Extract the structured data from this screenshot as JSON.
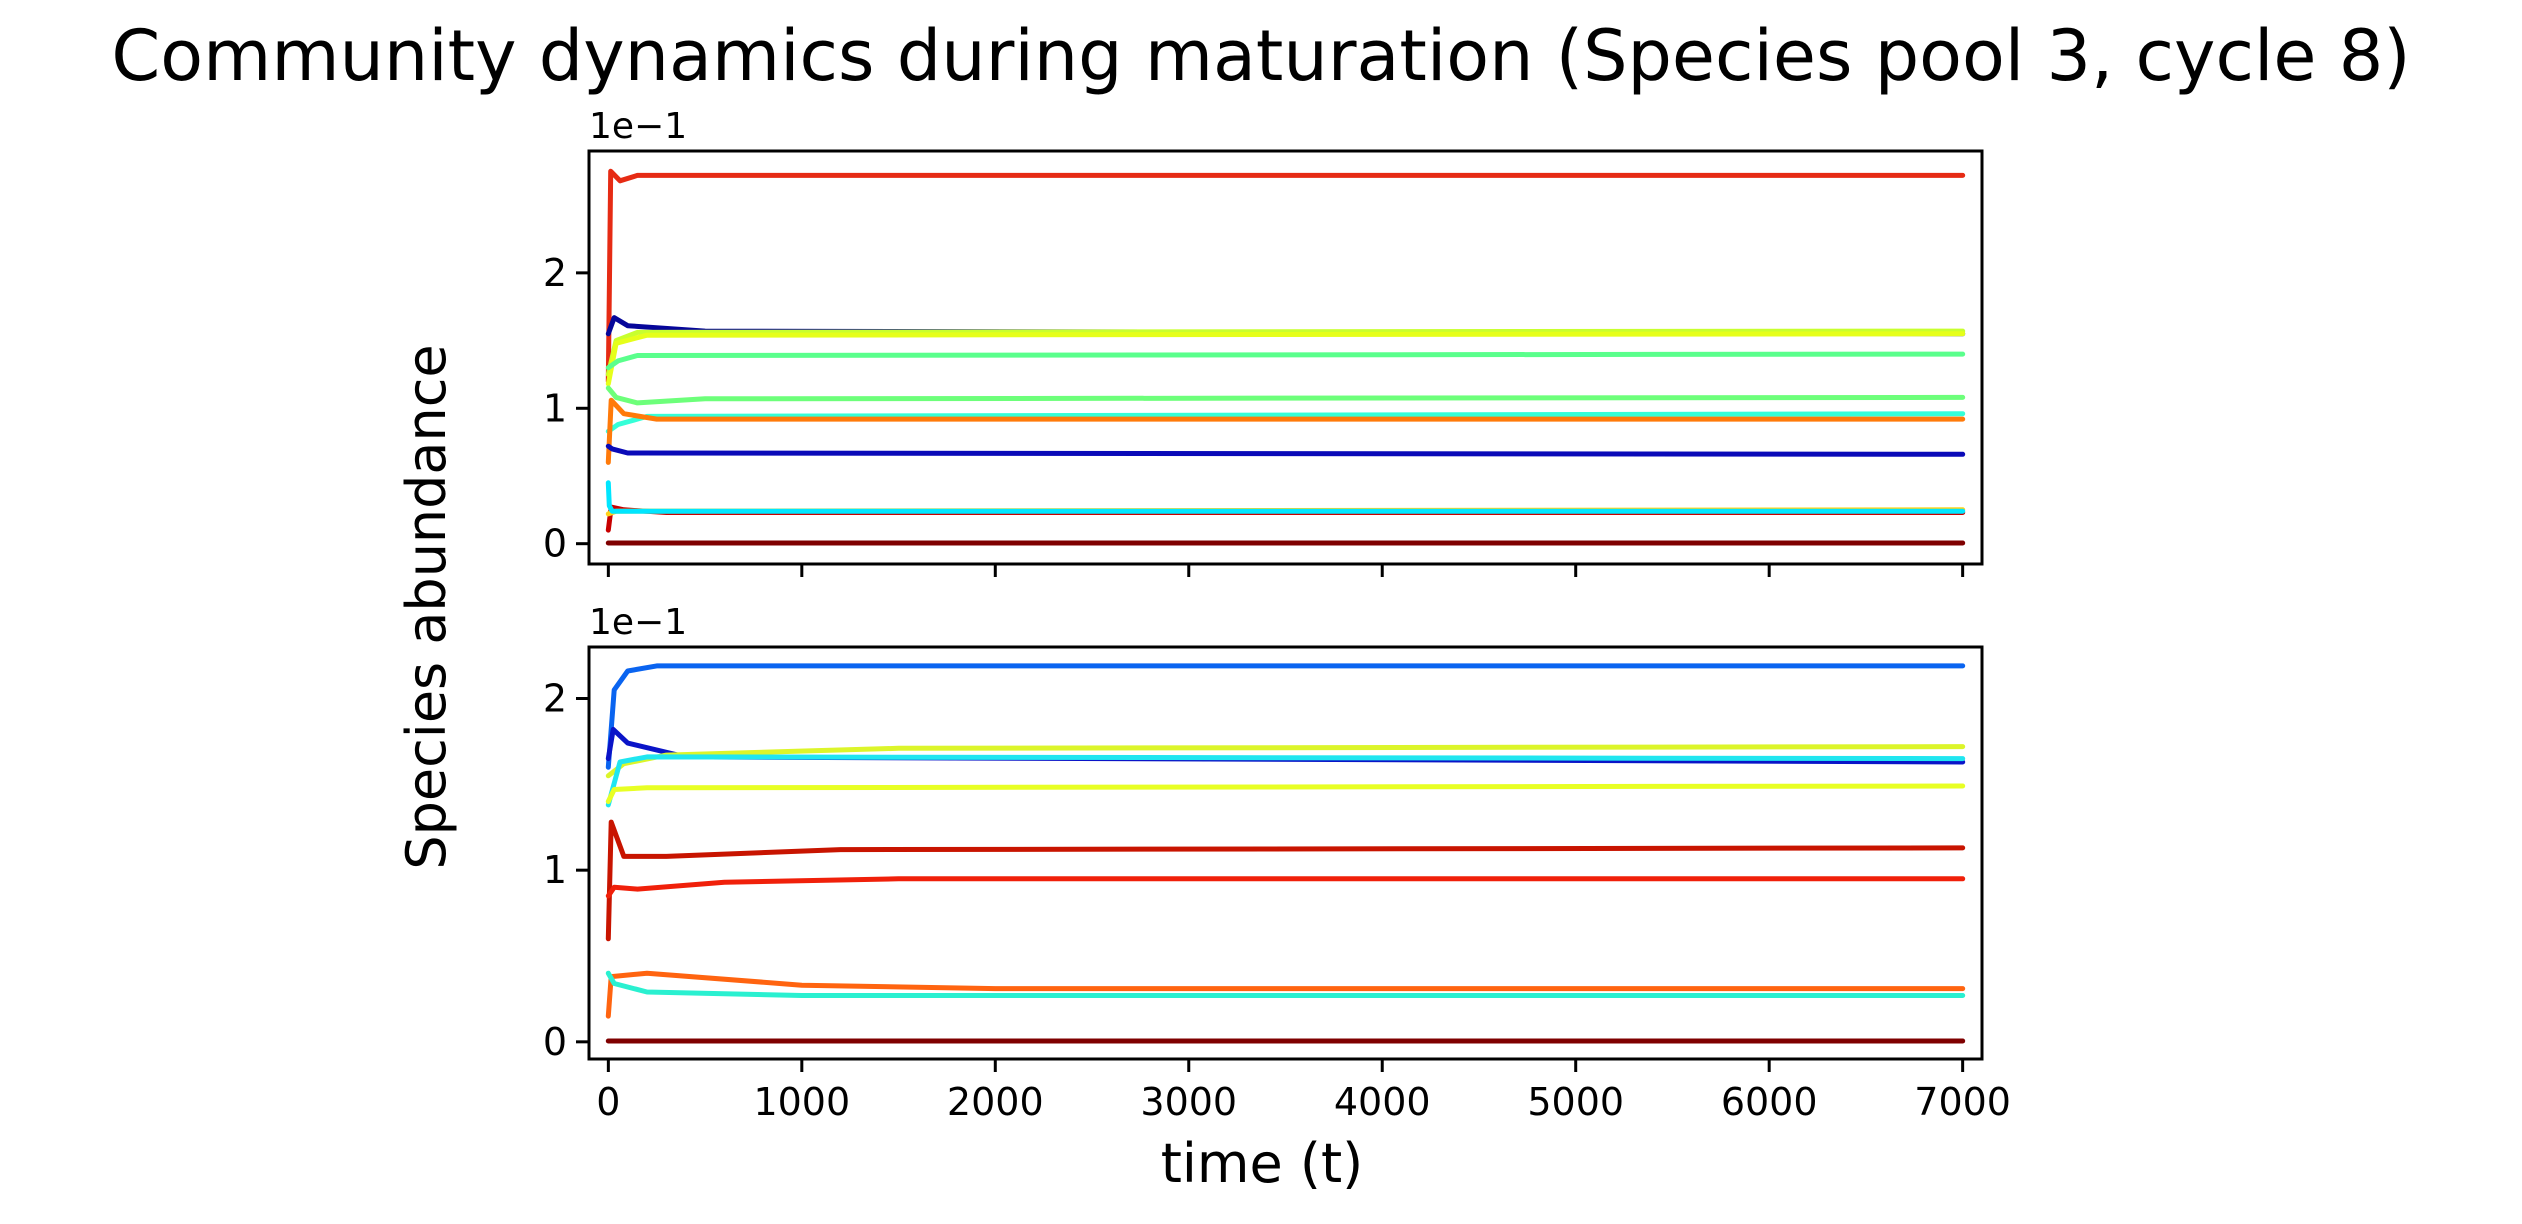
{
  "figure": {
    "title": "Community dynamics during maturation (Species pool 3, cycle 8)",
    "ylabel": "Species abundance",
    "xlabel": "time (t)"
  },
  "chart_data": [
    {
      "type": "line",
      "panel": "top",
      "title": "",
      "xlabel": "",
      "ylabel": "Species abundance",
      "xlim": [
        -100,
        7100
      ],
      "ylim": [
        -0.015,
        0.29
      ],
      "x_ticks": [
        0,
        1000,
        2000,
        3000,
        4000,
        5000,
        6000,
        7000
      ],
      "x_tick_labels_shown": false,
      "y_ticks": [
        0,
        0.1,
        0.2
      ],
      "y_tick_labels": [
        "0",
        "1",
        "2"
      ],
      "offset_text": "1e−1",
      "grid": false,
      "legend": "none",
      "series": [
        {
          "color": "#e62b14",
          "points": [
            [
              0,
              0.12
            ],
            [
              12,
              0.275
            ],
            [
              60,
              0.268
            ],
            [
              150,
              0.272
            ],
            [
              7000,
              0.272
            ]
          ]
        },
        {
          "color": "#06069a",
          "points": [
            [
              0,
              0.155
            ],
            [
              30,
              0.167
            ],
            [
              100,
              0.161
            ],
            [
              500,
              0.157
            ],
            [
              7000,
              0.155
            ]
          ]
        },
        {
          "color": "#c8ff2e",
          "points": [
            [
              0,
              0.125
            ],
            [
              40,
              0.15
            ],
            [
              150,
              0.156
            ],
            [
              7000,
              0.157
            ]
          ]
        },
        {
          "color": "#e6ff1a",
          "points": [
            [
              0,
              0.118
            ],
            [
              40,
              0.148
            ],
            [
              200,
              0.154
            ],
            [
              7000,
              0.155
            ]
          ]
        },
        {
          "color": "#5aff8c",
          "points": [
            [
              0,
              0.13
            ],
            [
              50,
              0.135
            ],
            [
              150,
              0.139
            ],
            [
              7000,
              0.14
            ]
          ]
        },
        {
          "color": "#6dff7a",
          "points": [
            [
              0,
              0.115
            ],
            [
              40,
              0.108
            ],
            [
              150,
              0.104
            ],
            [
              500,
              0.107
            ],
            [
              7000,
              0.108
            ]
          ]
        },
        {
          "color": "#35ffd8",
          "points": [
            [
              0,
              0.083
            ],
            [
              50,
              0.088
            ],
            [
              200,
              0.094
            ],
            [
              7000,
              0.096
            ]
          ]
        },
        {
          "color": "#ff7a0a",
          "points": [
            [
              0,
              0.06
            ],
            [
              15,
              0.106
            ],
            [
              80,
              0.096
            ],
            [
              250,
              0.092
            ],
            [
              7000,
              0.092
            ]
          ]
        },
        {
          "color": "#0a0ab8",
          "points": [
            [
              0,
              0.072
            ],
            [
              20,
              0.07
            ],
            [
              100,
              0.067
            ],
            [
              7000,
              0.066
            ]
          ]
        },
        {
          "color": "#c80000",
          "points": [
            [
              0,
              0.01
            ],
            [
              15,
              0.027
            ],
            [
              80,
              0.025
            ],
            [
              300,
              0.023
            ],
            [
              7000,
              0.023
            ]
          ]
        },
        {
          "color": "#ffd21a",
          "points": [
            [
              0,
              0.022
            ],
            [
              40,
              0.024
            ],
            [
              7000,
              0.025
            ]
          ]
        },
        {
          "color": "#00e6ff",
          "points": [
            [
              0,
              0.045
            ],
            [
              5,
              0.028
            ],
            [
              20,
              0.024
            ],
            [
              7000,
              0.024
            ]
          ]
        },
        {
          "color": "#7f0000",
          "points": [
            [
              0,
              0.0005
            ],
            [
              7000,
              0.0005
            ]
          ]
        }
      ]
    },
    {
      "type": "line",
      "panel": "bottom",
      "title": "",
      "xlabel": "time (t)",
      "ylabel": "Species abundance",
      "xlim": [
        -100,
        7100
      ],
      "ylim": [
        -0.01,
        0.23
      ],
      "x_ticks": [
        0,
        1000,
        2000,
        3000,
        4000,
        5000,
        6000,
        7000
      ],
      "x_tick_labels": [
        "0",
        "1000",
        "2000",
        "3000",
        "4000",
        "5000",
        "6000",
        "7000"
      ],
      "y_ticks": [
        0,
        0.1,
        0.2
      ],
      "y_tick_labels": [
        "0",
        "1",
        "2"
      ],
      "offset_text": "1e−1",
      "grid": false,
      "legend": "none",
      "series": [
        {
          "color": "#0a64f0",
          "points": [
            [
              0,
              0.16
            ],
            [
              30,
              0.205
            ],
            [
              100,
              0.216
            ],
            [
              250,
              0.219
            ],
            [
              7000,
              0.219
            ]
          ]
        },
        {
          "color": "#0a14c8",
          "points": [
            [
              0,
              0.165
            ],
            [
              25,
              0.182
            ],
            [
              100,
              0.174
            ],
            [
              400,
              0.166
            ],
            [
              7000,
              0.163
            ]
          ]
        },
        {
          "color": "#dcf52a",
          "points": [
            [
              0,
              0.155
            ],
            [
              80,
              0.162
            ],
            [
              300,
              0.167
            ],
            [
              1500,
              0.171
            ],
            [
              7000,
              0.172
            ]
          ]
        },
        {
          "color": "#20e6f0",
          "points": [
            [
              0,
              0.138
            ],
            [
              60,
              0.163
            ],
            [
              200,
              0.166
            ],
            [
              7000,
              0.165
            ]
          ]
        },
        {
          "color": "#e8ff24",
          "points": [
            [
              0,
              0.14
            ],
            [
              30,
              0.147
            ],
            [
              200,
              0.148
            ],
            [
              7000,
              0.149
            ]
          ]
        },
        {
          "color": "#c81400",
          "points": [
            [
              0,
              0.06
            ],
            [
              15,
              0.128
            ],
            [
              80,
              0.108
            ],
            [
              300,
              0.108
            ],
            [
              1200,
              0.112
            ],
            [
              7000,
              0.113
            ]
          ]
        },
        {
          "color": "#f0200a",
          "points": [
            [
              0,
              0.085
            ],
            [
              30,
              0.09
            ],
            [
              150,
              0.089
            ],
            [
              600,
              0.093
            ],
            [
              1500,
              0.095
            ],
            [
              7000,
              0.095
            ]
          ]
        },
        {
          "color": "#ff6410",
          "points": [
            [
              0,
              0.015
            ],
            [
              15,
              0.038
            ],
            [
              200,
              0.04
            ],
            [
              1000,
              0.033
            ],
            [
              2000,
              0.031
            ],
            [
              7000,
              0.031
            ]
          ]
        },
        {
          "color": "#2af0d0",
          "points": [
            [
              0,
              0.04
            ],
            [
              30,
              0.034
            ],
            [
              200,
              0.029
            ],
            [
              1000,
              0.027
            ],
            [
              7000,
              0.027
            ]
          ]
        },
        {
          "color": "#7f0000",
          "points": [
            [
              0,
              0.0005
            ],
            [
              7000,
              0.0005
            ]
          ]
        }
      ]
    }
  ]
}
